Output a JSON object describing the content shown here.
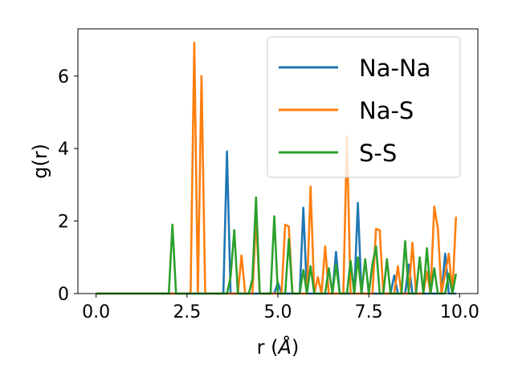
{
  "chart_data": {
    "type": "line",
    "xlabel_prefix": "r (",
    "xlabel_unit": "Å",
    "xlabel_suffix": ")",
    "ylabel": "g(r)",
    "xlim": [
      -0.5,
      10.5
    ],
    "ylim": [
      0,
      7.3
    ],
    "xticks": [
      0.0,
      2.5,
      5.0,
      7.5,
      10.0
    ],
    "xtick_labels": [
      "0.0",
      "2.5",
      "5.0",
      "7.5",
      "10.0"
    ],
    "yticks": [
      0,
      2,
      4,
      6
    ],
    "ytick_labels": [
      "0",
      "2",
      "4",
      "6"
    ],
    "grid": false,
    "legend_position": "top-right",
    "series": [
      {
        "name": "Na-Na",
        "color": "#1f77b4",
        "points": [
          [
            0.0,
            0
          ],
          [
            3.5,
            0
          ],
          [
            3.6,
            3.92
          ],
          [
            3.7,
            0
          ],
          [
            4.9,
            0
          ],
          [
            5.0,
            0.3
          ],
          [
            5.1,
            0
          ],
          [
            5.6,
            0
          ],
          [
            5.7,
            2.37
          ],
          [
            5.8,
            0
          ],
          [
            6.5,
            0
          ],
          [
            6.6,
            1.15
          ],
          [
            6.7,
            0
          ],
          [
            7.1,
            0
          ],
          [
            7.2,
            2.5
          ],
          [
            7.3,
            0
          ],
          [
            8.1,
            0
          ],
          [
            8.2,
            0.5
          ],
          [
            8.3,
            0
          ],
          [
            8.5,
            0
          ],
          [
            8.6,
            0.8
          ],
          [
            8.7,
            0
          ],
          [
            9.5,
            0
          ],
          [
            9.6,
            1.1
          ],
          [
            9.7,
            0
          ],
          [
            9.9,
            0
          ]
        ]
      },
      {
        "name": "Na-S",
        "color": "#ff7f0e",
        "points": [
          [
            0.0,
            0
          ],
          [
            2.6,
            0
          ],
          [
            2.7,
            6.92
          ],
          [
            2.8,
            0
          ],
          [
            2.9,
            6.0
          ],
          [
            3.0,
            0
          ],
          [
            3.9,
            0
          ],
          [
            4.0,
            1.05
          ],
          [
            4.1,
            0
          ],
          [
            4.3,
            0
          ],
          [
            4.4,
            2.1
          ],
          [
            4.5,
            0
          ],
          [
            5.1,
            0
          ],
          [
            5.2,
            1.9
          ],
          [
            5.3,
            1.85
          ],
          [
            5.4,
            0
          ],
          [
            5.8,
            0
          ],
          [
            5.9,
            2.95
          ],
          [
            6.0,
            0
          ],
          [
            6.1,
            0.45
          ],
          [
            6.2,
            0
          ],
          [
            6.3,
            1.3
          ],
          [
            6.4,
            0
          ],
          [
            6.8,
            0
          ],
          [
            6.9,
            4.35
          ],
          [
            7.0,
            0
          ],
          [
            7.6,
            0
          ],
          [
            7.7,
            1.78
          ],
          [
            7.8,
            1.75
          ],
          [
            7.9,
            0
          ],
          [
            8.2,
            0
          ],
          [
            8.3,
            0.75
          ],
          [
            8.4,
            0
          ],
          [
            8.6,
            0
          ],
          [
            8.7,
            1.4
          ],
          [
            8.8,
            0
          ],
          [
            9.0,
            0
          ],
          [
            9.1,
            0.6
          ],
          [
            9.2,
            0
          ],
          [
            9.3,
            2.4
          ],
          [
            9.4,
            1.8
          ],
          [
            9.5,
            0
          ],
          [
            9.7,
            1.1
          ],
          [
            9.8,
            0
          ],
          [
            9.9,
            2.12
          ]
        ]
      },
      {
        "name": "S-S",
        "color": "#2ca02c",
        "points": [
          [
            0.0,
            0
          ],
          [
            2.0,
            0
          ],
          [
            2.1,
            1.9
          ],
          [
            2.2,
            0
          ],
          [
            3.6,
            0
          ],
          [
            3.7,
            0.45
          ],
          [
            3.8,
            1.75
          ],
          [
            3.9,
            0
          ],
          [
            4.2,
            0
          ],
          [
            4.3,
            0.4
          ],
          [
            4.4,
            2.65
          ],
          [
            4.5,
            0
          ],
          [
            4.8,
            0
          ],
          [
            4.9,
            2.13
          ],
          [
            5.0,
            0
          ],
          [
            5.2,
            0
          ],
          [
            5.3,
            1.5
          ],
          [
            5.4,
            0
          ],
          [
            5.6,
            0
          ],
          [
            5.7,
            0.65
          ],
          [
            5.8,
            0
          ],
          [
            5.9,
            0.75
          ],
          [
            6.0,
            0
          ],
          [
            6.3,
            0
          ],
          [
            6.4,
            0.7
          ],
          [
            6.5,
            0
          ],
          [
            6.6,
            0.8
          ],
          [
            6.7,
            0
          ],
          [
            6.9,
            0
          ],
          [
            7.0,
            0.9
          ],
          [
            7.1,
            0
          ],
          [
            7.2,
            1.0
          ],
          [
            7.3,
            0
          ],
          [
            7.4,
            0.95
          ],
          [
            7.5,
            0
          ],
          [
            7.6,
            0.8
          ],
          [
            7.7,
            1.3
          ],
          [
            7.8,
            0
          ],
          [
            7.9,
            0
          ],
          [
            8.0,
            0.95
          ],
          [
            8.1,
            0
          ],
          [
            8.4,
            0
          ],
          [
            8.5,
            1.45
          ],
          [
            8.6,
            0
          ],
          [
            8.8,
            0
          ],
          [
            8.9,
            1.0
          ],
          [
            9.0,
            0
          ],
          [
            9.1,
            1.25
          ],
          [
            9.2,
            0
          ],
          [
            9.3,
            0.7
          ],
          [
            9.4,
            0
          ],
          [
            9.6,
            0
          ],
          [
            9.7,
            0.55
          ],
          [
            9.8,
            0
          ],
          [
            9.9,
            0.55
          ]
        ]
      }
    ]
  }
}
